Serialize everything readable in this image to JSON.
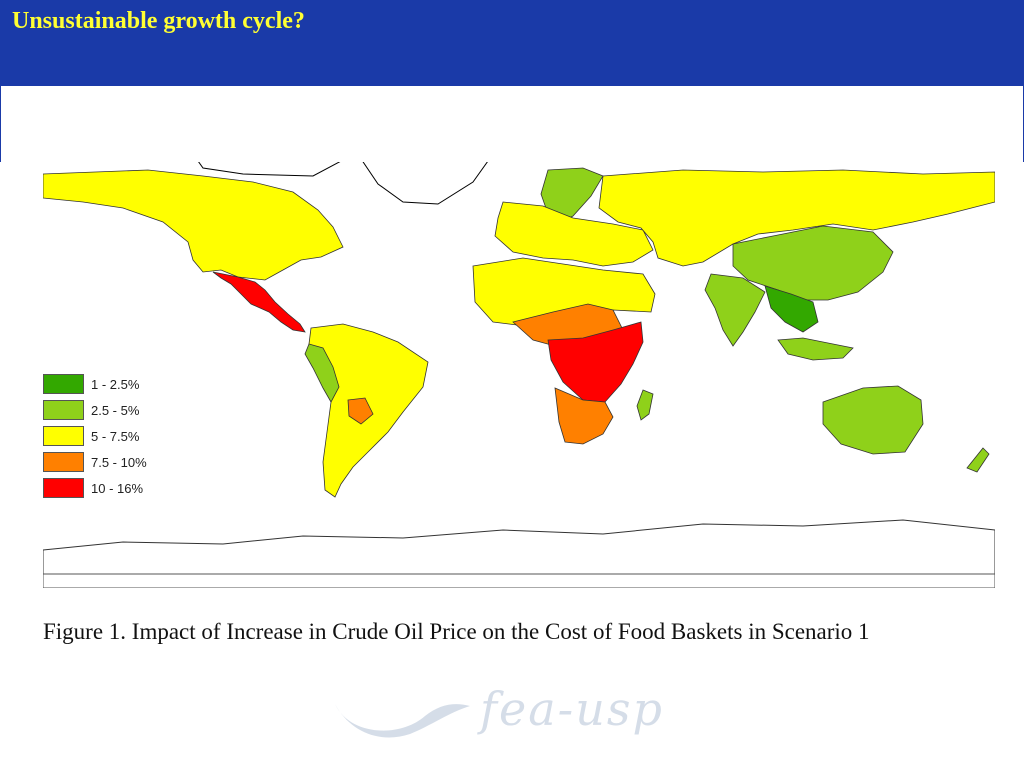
{
  "slide": {
    "title": "Unsustainable growth cycle?"
  },
  "figure": {
    "caption": "Figure 1. Impact of Increase in Crude Oil Price on the Cost of Food Baskets in Scenario 1"
  },
  "legend": {
    "items": [
      {
        "label": "1 - 2.5%",
        "color": "#33a800"
      },
      {
        "label": "2.5 - 5%",
        "color": "#8fd11a"
      },
      {
        "label": "5 - 7.5%",
        "color": "#ffff00"
      },
      {
        "label": "7.5 - 10%",
        "color": "#ff8000"
      },
      {
        "label": "10 - 16%",
        "color": "#ff0000"
      }
    ]
  },
  "regions": [
    {
      "name": "north-america",
      "category": "5 - 7.5%"
    },
    {
      "name": "mexico-central-america",
      "category": "10 - 16%"
    },
    {
      "name": "south-america",
      "category": "5 - 7.5%"
    },
    {
      "name": "ecuador-peru",
      "category": "2.5 - 5%"
    },
    {
      "name": "paraguay",
      "category": "7.5 - 10%"
    },
    {
      "name": "europe",
      "category": "5 - 7.5%"
    },
    {
      "name": "scandinavia",
      "category": "2.5 - 5%"
    },
    {
      "name": "russia-central-asia",
      "category": "5 - 7.5%"
    },
    {
      "name": "china",
      "category": "2.5 - 5%"
    },
    {
      "name": "india",
      "category": "2.5 - 5%"
    },
    {
      "name": "southeast-asia",
      "category": "1 - 2.5%"
    },
    {
      "name": "north-africa",
      "category": "5 - 7.5%"
    },
    {
      "name": "sahel-central-africa",
      "category": "7.5 - 10%"
    },
    {
      "name": "east-central-africa",
      "category": "10 - 16%"
    },
    {
      "name": "southern-africa",
      "category": "7.5 - 10%"
    },
    {
      "name": "madagascar",
      "category": "2.5 - 5%"
    },
    {
      "name": "australia",
      "category": "2.5 - 5%"
    },
    {
      "name": "new-zealand",
      "category": "2.5 - 5%"
    },
    {
      "name": "antarctica",
      "category": "none"
    }
  ],
  "watermark": {
    "text": "fea-usp"
  }
}
